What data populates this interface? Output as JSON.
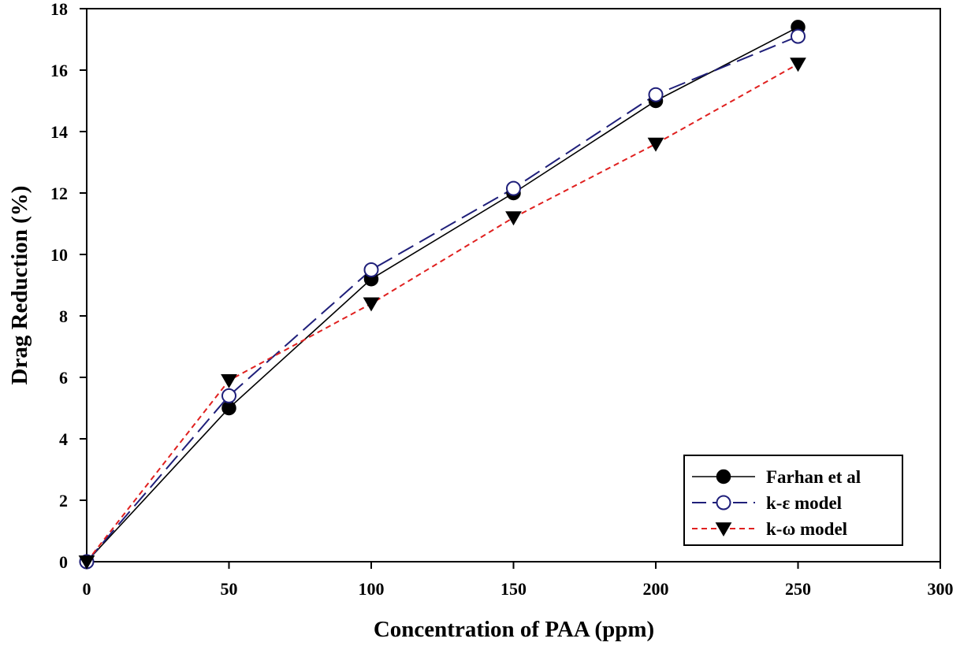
{
  "chart_data": {
    "type": "line",
    "title": "",
    "xlabel": "Concentration of PAA (ppm)",
    "ylabel": "Drag Reduction (%)",
    "xlim": [
      0,
      300
    ],
    "ylim": [
      0,
      18
    ],
    "xticks": [
      0,
      50,
      100,
      150,
      200,
      250,
      300
    ],
    "yticks": [
      0,
      2,
      4,
      6,
      8,
      10,
      12,
      14,
      16,
      18
    ],
    "grid": false,
    "legend_position": "bottom-right",
    "series": [
      {
        "name": "Farhan  et al",
        "marker": "filled-circle",
        "line_style": "solid",
        "color": "#000000",
        "x": [
          0,
          50,
          100,
          150,
          200,
          250
        ],
        "y": [
          0,
          5.0,
          9.2,
          12.0,
          15.0,
          17.4
        ]
      },
      {
        "name": "k-ε model",
        "marker": "open-circle",
        "line_style": "long-dash",
        "color": "#1f1f7a",
        "x": [
          0,
          50,
          100,
          150,
          200,
          250
        ],
        "y": [
          0,
          5.4,
          9.5,
          12.15,
          15.2,
          17.1
        ]
      },
      {
        "name": "k-ω model",
        "marker": "down-triangle",
        "line_style": "short-dash",
        "color": "#e0201f",
        "x": [
          0,
          50,
          100,
          150,
          200,
          250
        ],
        "y": [
          0,
          5.9,
          8.4,
          11.2,
          13.6,
          16.2
        ]
      }
    ]
  }
}
